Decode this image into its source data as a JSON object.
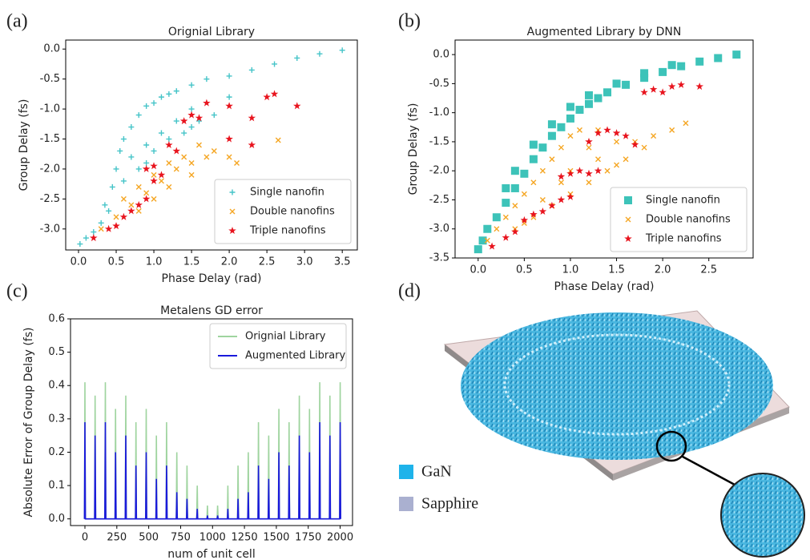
{
  "chart_data": [
    {
      "type": "scatter",
      "panel_label": "(a)",
      "title": "Orignial Library",
      "xlabel": "Phase Delay (rad)",
      "ylabel": "Group Delay (fs)",
      "xlim": [
        -0.17,
        3.7
      ],
      "ylim": [
        -3.35,
        0.15
      ],
      "xticks": [
        {
          "value": 0,
          "label": "0.0"
        },
        0.5,
        {
          "value": 1,
          "label": "1.0"
        },
        1.5,
        {
          "value": 2,
          "label": "2.0"
        },
        2.5,
        {
          "value": 3,
          "label": "3.0"
        },
        3.5
      ],
      "yticks": [
        {
          "value": 0,
          "label": "0.0"
        },
        -0.5,
        {
          "value": -1,
          "label": "-1.0"
        },
        -1.5,
        {
          "value": -2,
          "label": "-2.0"
        },
        -2.5,
        {
          "value": -3,
          "label": "-3.0"
        }
      ],
      "legend": "lower right",
      "series": [
        {
          "name": "Single nanofin",
          "color": "#45c4c8",
          "marker": "plus",
          "x": [
            0.02,
            0.1,
            0.2,
            0.3,
            0.35,
            0.45,
            0.5,
            0.55,
            0.6,
            0.7,
            0.8,
            0.9,
            1.0,
            1.1,
            1.2,
            1.3,
            1.5,
            1.7,
            2.0,
            2.3,
            2.6,
            2.9,
            3.2,
            3.5,
            0.7,
            0.9,
            1.1,
            1.3,
            1.5,
            0.6,
            0.8,
            1.0,
            1.2,
            1.4,
            1.6,
            1.8,
            2.0,
            0.4,
            0.9,
            1.5
          ],
          "y": [
            -3.25,
            -3.15,
            -3.05,
            -2.9,
            -2.6,
            -2.3,
            -2.0,
            -1.7,
            -1.5,
            -1.3,
            -1.1,
            -0.95,
            -0.9,
            -0.8,
            -0.75,
            -0.7,
            -0.6,
            -0.5,
            -0.45,
            -0.35,
            -0.25,
            -0.15,
            -0.08,
            -0.02,
            -1.8,
            -1.6,
            -1.4,
            -1.2,
            -1.0,
            -2.2,
            -2.0,
            -1.7,
            -1.5,
            -1.4,
            -1.2,
            -1.1,
            -0.8,
            -2.7,
            -1.9,
            -1.3
          ]
        },
        {
          "name": "Double nanofins",
          "color": "#f5a623",
          "marker": "x",
          "x": [
            0.3,
            0.5,
            0.6,
            0.7,
            0.8,
            0.9,
            1.0,
            1.1,
            1.2,
            1.3,
            1.4,
            1.5,
            1.6,
            1.7,
            1.8,
            2.0,
            2.1,
            2.65,
            1.0,
            1.2,
            1.5,
            0.8
          ],
          "y": [
            -3.0,
            -2.8,
            -2.5,
            -2.6,
            -2.3,
            -2.4,
            -2.1,
            -2.2,
            -1.9,
            -2.0,
            -1.8,
            -1.9,
            -1.6,
            -1.8,
            -1.7,
            -1.8,
            -1.9,
            -1.52,
            -2.5,
            -2.3,
            -2.1,
            -2.7
          ]
        },
        {
          "name": "Triple nanofins",
          "color": "#e8141e",
          "marker": "star",
          "x": [
            0.2,
            0.4,
            0.5,
            0.6,
            0.7,
            0.8,
            0.9,
            1.0,
            1.1,
            0.9,
            1.0,
            1.2,
            1.3,
            1.5,
            1.6,
            1.4,
            2.0,
            2.3,
            2.5,
            2.6,
            2.9,
            2.0,
            2.3,
            1.7
          ],
          "y": [
            -3.15,
            -3.0,
            -2.95,
            -2.8,
            -2.7,
            -2.6,
            -2.5,
            -2.2,
            -2.1,
            -2.0,
            -1.95,
            -1.6,
            -1.7,
            -1.1,
            -1.15,
            -1.2,
            -1.5,
            -1.6,
            -0.8,
            -0.75,
            -0.95,
            -0.95,
            -1.15,
            -0.9
          ]
        }
      ]
    },
    {
      "type": "scatter",
      "panel_label": "(b)",
      "title": "Augmented Library by DNN",
      "xlabel": "Phase Delay (rad)",
      "ylabel": "Group Delay (fs)",
      "xlim": [
        -0.25,
        2.98
      ],
      "ylim": [
        -3.5,
        0.25
      ],
      "xticks": [
        {
          "value": 0,
          "label": "0.0"
        },
        0.5,
        {
          "value": 1,
          "label": "1.0"
        },
        1.5,
        {
          "value": 2,
          "label": "2.0"
        },
        2.5
      ],
      "yticks": [
        {
          "value": 0,
          "label": "0.0"
        },
        -0.5,
        {
          "value": -1,
          "label": "-1.0"
        },
        -1.5,
        {
          "value": -2,
          "label": "-2.0"
        },
        -2.5,
        {
          "value": -3,
          "label": "-3.0"
        },
        -3.5
      ],
      "legend": "lower right",
      "series": [
        {
          "name": "Single nanofin",
          "color": "#3dc3b9",
          "marker": "square",
          "x": [
            0,
            0.05,
            0.1,
            0.2,
            0.3,
            0.4,
            0.5,
            0.6,
            0.7,
            0.8,
            0.9,
            1.0,
            1.1,
            1.2,
            1.3,
            1.4,
            1.6,
            1.8,
            2.0,
            2.2,
            2.4,
            2.6,
            2.8,
            0.6,
            0.8,
            1.0,
            1.2,
            1.5,
            1.8,
            2.1,
            0.4,
            0.3
          ],
          "y": [
            -3.35,
            -3.2,
            -3.0,
            -2.8,
            -2.55,
            -2.3,
            -2.05,
            -1.8,
            -1.6,
            -1.4,
            -1.25,
            -1.1,
            -0.95,
            -0.85,
            -0.75,
            -0.65,
            -0.52,
            -0.4,
            -0.3,
            -0.2,
            -0.12,
            -0.06,
            0.0,
            -1.55,
            -1.2,
            -0.9,
            -0.7,
            -0.5,
            -0.32,
            -0.18,
            -2.0,
            -2.3
          ]
        },
        {
          "name": "Double nanofins",
          "color": "#f5a623",
          "marker": "x",
          "x": [
            0.1,
            0.2,
            0.3,
            0.4,
            0.5,
            0.6,
            0.7,
            0.8,
            0.9,
            1.0,
            1.1,
            1.3,
            1.5,
            1.7,
            1.9,
            2.1,
            2.25,
            0.4,
            0.6,
            0.8,
            1.0,
            1.2,
            1.4,
            1.6,
            1.8,
            0.7,
            1.0,
            1.3,
            1.5,
            0.9,
            1.2,
            0.5
          ],
          "y": [
            -3.2,
            -3.0,
            -2.8,
            -2.6,
            -2.4,
            -2.2,
            -2.0,
            -1.8,
            -1.6,
            -1.4,
            -1.3,
            -1.3,
            -1.5,
            -1.5,
            -1.4,
            -1.3,
            -1.18,
            -3.0,
            -2.8,
            -2.6,
            -2.4,
            -2.2,
            -2.0,
            -1.8,
            -1.6,
            -2.5,
            -2.0,
            -1.8,
            -1.9,
            -2.2,
            -1.6,
            -2.9
          ]
        },
        {
          "name": "Triple nanofins",
          "color": "#e8141e",
          "marker": "star",
          "x": [
            0.15,
            0.3,
            0.4,
            0.5,
            0.6,
            0.7,
            0.8,
            0.9,
            1.0,
            0.9,
            1.0,
            1.1,
            1.2,
            1.3,
            1.3,
            1.4,
            1.5,
            1.6,
            1.2,
            1.8,
            1.9,
            2.0,
            2.1,
            2.2,
            2.4,
            1.7
          ],
          "y": [
            -3.3,
            -3.15,
            -3.05,
            -2.85,
            -2.75,
            -2.7,
            -2.6,
            -2.5,
            -2.45,
            -2.1,
            -2.05,
            -2.0,
            -2.05,
            -2.0,
            -1.35,
            -1.3,
            -1.35,
            -1.4,
            -1.5,
            -0.65,
            -0.6,
            -0.65,
            -0.55,
            -0.52,
            -0.55,
            -1.55
          ]
        }
      ]
    },
    {
      "type": "line",
      "panel_label": "(c)",
      "title": "Metalens GD error",
      "xlabel": "num of unit cell",
      "ylabel": "Absolute Error of Group Delay  (fs)",
      "xlim": [
        -113,
        2097
      ],
      "ylim": [
        -0.02,
        0.6
      ],
      "xticks": [
        0,
        250,
        500,
        750,
        1000,
        1250,
        1500,
        1750,
        2000
      ],
      "yticks": [
        {
          "value": 0,
          "label": "0.0"
        },
        0.1,
        0.2,
        0.3,
        0.4,
        0.5,
        0.6
      ],
      "legend": "upper right",
      "x": [
        -4,
        0,
        4,
        76,
        80,
        84,
        156,
        160,
        164,
        236,
        240,
        244,
        316,
        320,
        324,
        396,
        400,
        404,
        476,
        480,
        484,
        556,
        560,
        564,
        636,
        640,
        644,
        716,
        720,
        724,
        796,
        800,
        804,
        876,
        880,
        884,
        956,
        960,
        964,
        1036,
        1040,
        1044,
        1116,
        1120,
        1124,
        1196,
        1200,
        1204,
        1276,
        1280,
        1284,
        1356,
        1360,
        1364,
        1436,
        1440,
        1444,
        1516,
        1520,
        1524,
        1596,
        1600,
        1604,
        1676,
        1680,
        1684,
        1756,
        1760,
        1764,
        1836,
        1840,
        1844,
        1916,
        1920,
        1924,
        1996,
        2000,
        2004
      ],
      "series": [
        {
          "name": "Orignial Library",
          "color": "#9fd49f",
          "values": [
            0,
            0.41,
            0,
            0,
            0.37,
            0,
            0,
            0.41,
            0,
            0,
            0.33,
            0,
            0,
            0.37,
            0,
            0,
            0.29,
            0,
            0,
            0.33,
            0,
            0,
            0.25,
            0,
            0,
            0.29,
            0,
            0,
            0.2,
            0,
            0,
            0.16,
            0,
            0,
            0.1,
            0,
            0,
            0.04,
            0,
            0,
            0.04,
            0,
            0,
            0.1,
            0,
            0,
            0.16,
            0,
            0,
            0.2,
            0,
            0,
            0.29,
            0,
            0,
            0.25,
            0,
            0,
            0.33,
            0,
            0,
            0.29,
            0,
            0,
            0.37,
            0,
            0,
            0.33,
            0,
            0,
            0.41,
            0,
            0,
            0.37,
            0,
            0,
            0.41,
            0
          ]
        },
        {
          "name": "Augmented Library",
          "color": "#1a1adb",
          "values": [
            0,
            0.29,
            0,
            0,
            0.25,
            0,
            0,
            0.29,
            0,
            0,
            0.2,
            0,
            0,
            0.25,
            0,
            0,
            0.16,
            0,
            0,
            0.2,
            0,
            0,
            0.12,
            0,
            0,
            0.16,
            0,
            0,
            0.08,
            0,
            0,
            0.06,
            0,
            0,
            0.03,
            0,
            0,
            0.01,
            0,
            0,
            0.01,
            0,
            0,
            0.03,
            0,
            0,
            0.06,
            0,
            0,
            0.08,
            0,
            0,
            0.16,
            0,
            0,
            0.12,
            0,
            0,
            0.2,
            0,
            0,
            0.16,
            0,
            0,
            0.25,
            0,
            0,
            0.2,
            0,
            0,
            0.29,
            0,
            0,
            0.25,
            0,
            0,
            0.29,
            0
          ]
        }
      ]
    }
  ],
  "illustration": {
    "panel_label": "(d)",
    "legend": [
      "GaN",
      "Sapphire"
    ]
  }
}
